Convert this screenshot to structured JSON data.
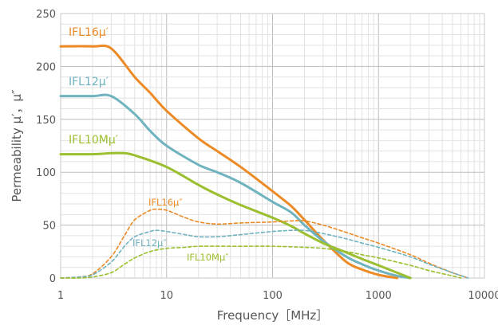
{
  "chart_data": {
    "type": "line",
    "xlabel": "Frequency［MHz］",
    "ylabel": "Permeability μ′，μ″",
    "x_scale": "log",
    "xlim": [
      1,
      10000
    ],
    "ylim": [
      0,
      250
    ],
    "x_ticks": [
      "1",
      "10",
      "100",
      "1000",
      "10000"
    ],
    "y_ticks": [
      "0",
      "50",
      "100",
      "150",
      "200",
      "250"
    ],
    "grid": true,
    "series": [
      {
        "name": "IFL16μ′",
        "style": "solid",
        "color": "#ec8a26",
        "points": [
          [
            1,
            219
          ],
          [
            2,
            219
          ],
          [
            3,
            217
          ],
          [
            5,
            190
          ],
          [
            7,
            175
          ],
          [
            10,
            158
          ],
          [
            20,
            132
          ],
          [
            30,
            120
          ],
          [
            50,
            105
          ],
          [
            100,
            82
          ],
          [
            150,
            68
          ],
          [
            200,
            55
          ],
          [
            300,
            36
          ],
          [
            500,
            15
          ],
          [
            700,
            8
          ],
          [
            1000,
            3
          ],
          [
            1500,
            0
          ]
        ]
      },
      {
        "name": "IFL12μ′",
        "style": "solid",
        "color": "#6fb3bf",
        "points": [
          [
            1,
            172
          ],
          [
            2,
            172
          ],
          [
            3,
            172
          ],
          [
            5,
            155
          ],
          [
            7,
            139
          ],
          [
            10,
            125
          ],
          [
            20,
            107
          ],
          [
            30,
            100
          ],
          [
            50,
            90
          ],
          [
            100,
            72
          ],
          [
            150,
            62
          ],
          [
            200,
            50
          ],
          [
            300,
            35
          ],
          [
            500,
            20
          ],
          [
            700,
            13
          ],
          [
            1000,
            7
          ],
          [
            1500,
            2
          ],
          [
            2000,
            0
          ]
        ]
      },
      {
        "name": "IFL10Mμ′",
        "style": "solid",
        "color": "#9bbf2e",
        "points": [
          [
            1,
            117
          ],
          [
            2,
            117
          ],
          [
            3,
            118
          ],
          [
            4,
            118
          ],
          [
            5,
            116
          ],
          [
            10,
            105
          ],
          [
            20,
            88
          ],
          [
            30,
            79
          ],
          [
            50,
            69
          ],
          [
            100,
            57
          ],
          [
            150,
            49
          ],
          [
            200,
            42
          ],
          [
            300,
            33
          ],
          [
            500,
            24
          ],
          [
            700,
            18
          ],
          [
            1000,
            12
          ],
          [
            1500,
            5
          ],
          [
            2000,
            0
          ]
        ]
      },
      {
        "name": "IFL16μ″",
        "style": "dashed",
        "color": "#ec8a26",
        "points": [
          [
            1,
            0
          ],
          [
            1.5,
            1
          ],
          [
            2,
            4
          ],
          [
            3,
            20
          ],
          [
            4,
            40
          ],
          [
            5,
            55
          ],
          [
            7,
            64
          ],
          [
            8,
            65
          ],
          [
            10,
            64
          ],
          [
            15,
            57
          ],
          [
            20,
            53
          ],
          [
            30,
            51
          ],
          [
            50,
            52
          ],
          [
            100,
            53
          ],
          [
            150,
            54
          ],
          [
            200,
            54
          ],
          [
            300,
            50
          ],
          [
            500,
            43
          ],
          [
            700,
            38
          ],
          [
            1000,
            33
          ],
          [
            2000,
            22
          ],
          [
            3000,
            14
          ],
          [
            5000,
            5
          ],
          [
            7000,
            0
          ]
        ]
      },
      {
        "name": "IFL12μ″",
        "style": "dashed",
        "color": "#6fb3bf",
        "points": [
          [
            1,
            0
          ],
          [
            1.5,
            1
          ],
          [
            2,
            3
          ],
          [
            3,
            15
          ],
          [
            4,
            30
          ],
          [
            5,
            39
          ],
          [
            7,
            44
          ],
          [
            8,
            45
          ],
          [
            10,
            44
          ],
          [
            15,
            41
          ],
          [
            20,
            39
          ],
          [
            30,
            39
          ],
          [
            50,
            41
          ],
          [
            100,
            44
          ],
          [
            150,
            45
          ],
          [
            200,
            45
          ],
          [
            300,
            42
          ],
          [
            500,
            37
          ],
          [
            700,
            33
          ],
          [
            1000,
            29
          ],
          [
            2000,
            20
          ],
          [
            3000,
            13
          ],
          [
            5000,
            5
          ],
          [
            7000,
            0
          ]
        ]
      },
      {
        "name": "IFL10Mμ″",
        "style": "dashed",
        "color": "#9bbf2e",
        "points": [
          [
            1,
            0
          ],
          [
            1.5,
            0
          ],
          [
            2,
            1
          ],
          [
            3,
            5
          ],
          [
            4,
            13
          ],
          [
            5,
            19
          ],
          [
            7,
            25
          ],
          [
            10,
            28
          ],
          [
            15,
            29
          ],
          [
            20,
            30
          ],
          [
            50,
            30
          ],
          [
            100,
            30
          ],
          [
            200,
            29
          ],
          [
            300,
            28
          ],
          [
            500,
            25
          ],
          [
            700,
            22
          ],
          [
            1000,
            19
          ],
          [
            2000,
            12
          ],
          [
            3000,
            7
          ],
          [
            5000,
            2
          ],
          [
            6000,
            0
          ]
        ]
      }
    ]
  }
}
